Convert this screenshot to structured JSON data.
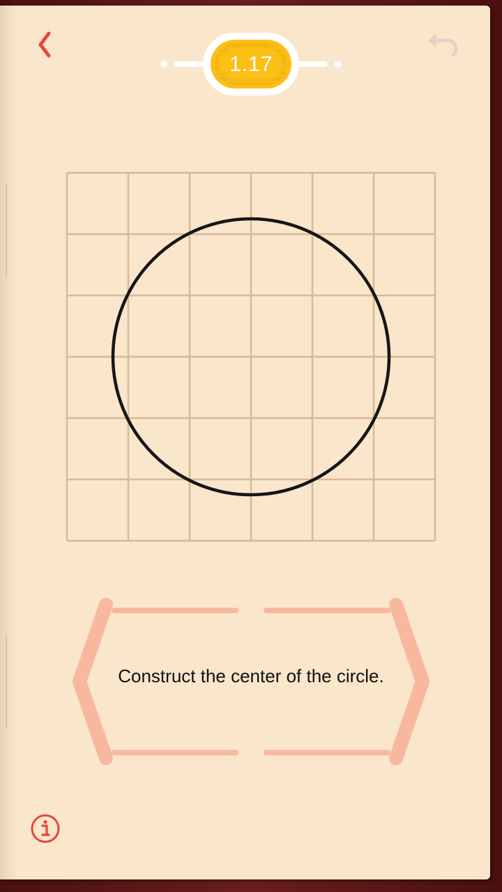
{
  "level": {
    "label": "1.17"
  },
  "instruction": {
    "text": "Construct the center of the circle."
  },
  "board": {
    "grid": {
      "columns": 6,
      "rows": 6
    },
    "circle": {
      "center": [
        3,
        3
      ],
      "radius": 2.25
    }
  },
  "icons": {
    "back": "chevron-left-icon",
    "undo": "undo-arrow-icon",
    "info": "info-circle-icon"
  },
  "colors": {
    "page": "#f9e6cb",
    "grid_line": "#d9b89a",
    "circle": "#161616",
    "accent_red": "#e8453c",
    "badge_gold": "#fbbf16",
    "panel_salmon": "#f8b8a0",
    "undo_disabled": "#e4d3c3"
  }
}
